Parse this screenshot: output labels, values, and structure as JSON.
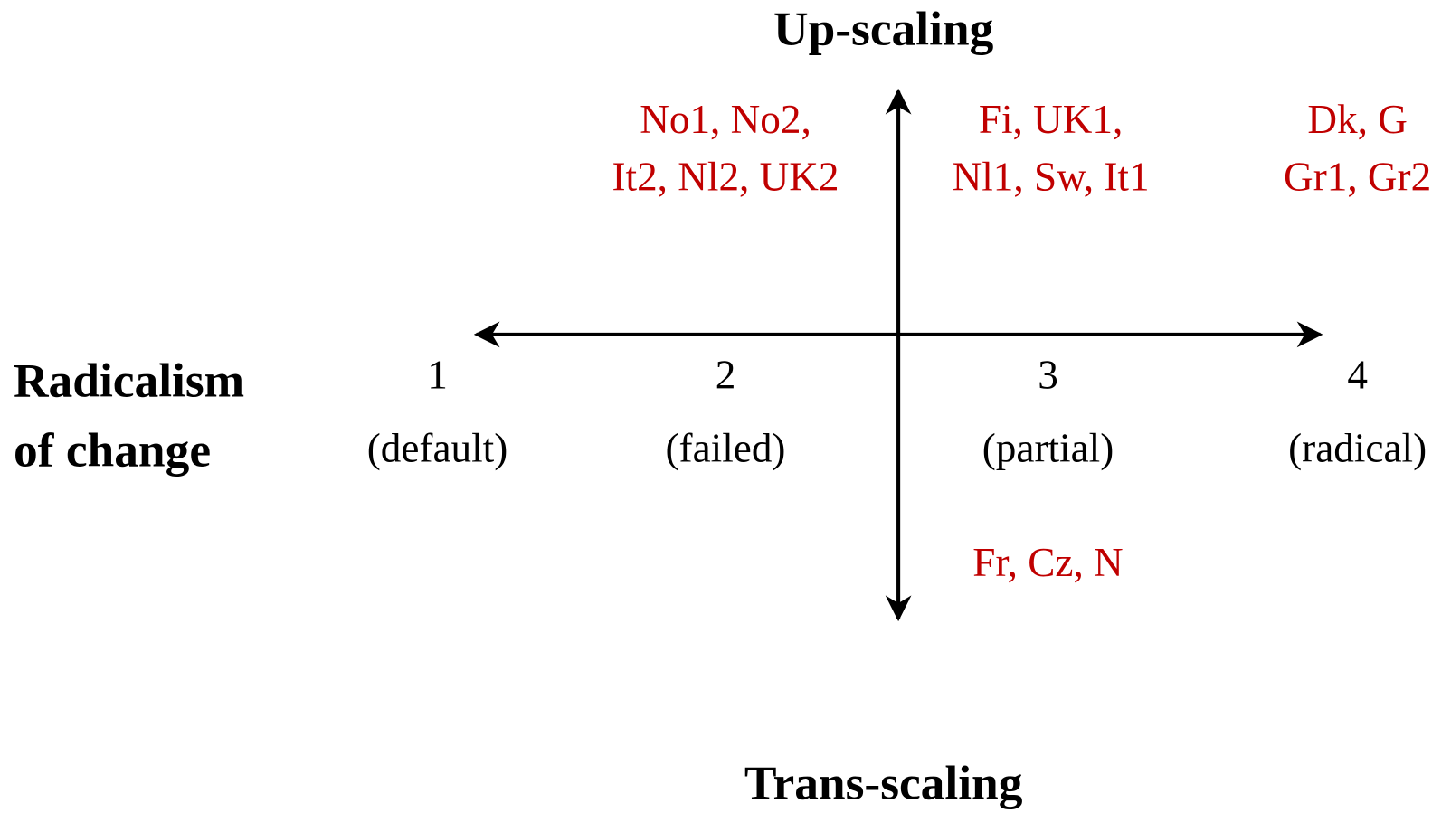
{
  "vertical_axis": {
    "top": "Up-scaling",
    "bottom": "Trans-scaling"
  },
  "horizontal_axis": {
    "label": [
      "Radicalism",
      "of change"
    ],
    "points": [
      {
        "number": 1,
        "label": "(default)"
      },
      {
        "number": 2,
        "label": "(failed)"
      },
      {
        "number": 3,
        "label": "(partial)"
      },
      {
        "number": 4,
        "label": "(radical)"
      }
    ]
  },
  "groups": [
    {
      "lines": [
        "No1, No2,",
        "It2, Nl2, UK2"
      ]
    },
    {
      "lines": [
        "Fi, UK1,",
        "Nl1, Sw, It1"
      ]
    },
    {
      "lines": [
        "Dk, G",
        "Gr1, Gr2"
      ]
    },
    {
      "lines": [
        "Fr, Cz, N"
      ]
    }
  ]
}
